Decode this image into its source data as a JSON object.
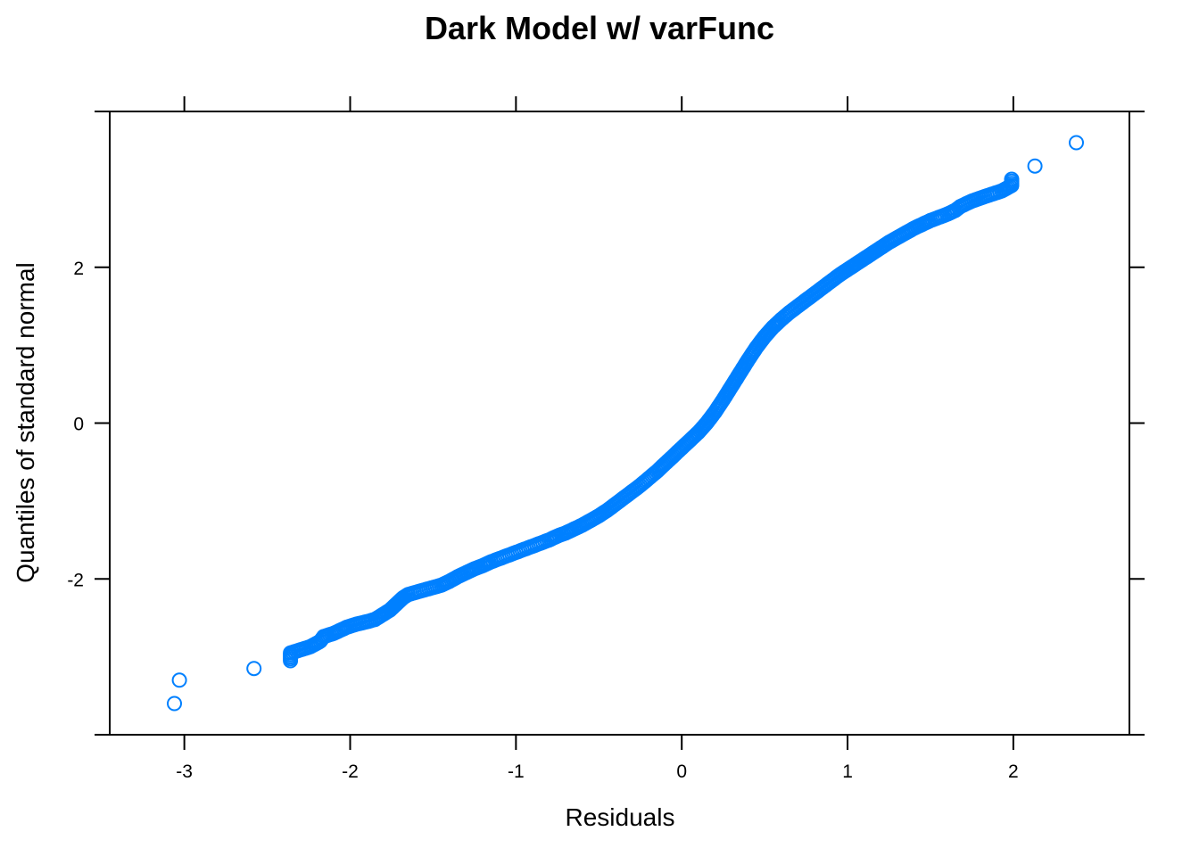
{
  "chart_data": {
    "type": "scatter",
    "title": "Dark Model w/ varFunc",
    "xlabel": "Residuals",
    "ylabel": "Quantiles of standard normal",
    "xlim": [
      -3.45,
      2.7
    ],
    "ylim": [
      -4.0,
      4.0
    ],
    "x_ticks": [
      -3,
      -2,
      -1,
      0,
      1,
      2
    ],
    "x_tick_labels": [
      "-3",
      "-2",
      "-1",
      "0",
      "1",
      "2"
    ],
    "y_ticks": [
      -2,
      0,
      2
    ],
    "y_tick_labels": [
      "-2",
      "0",
      "2"
    ],
    "y_minor_ticks": [
      -4,
      4
    ],
    "grid": false,
    "marker": "open-circle",
    "color": "#0080ff",
    "points": [
      [
        -3.06,
        -3.6
      ],
      [
        -3.03,
        -3.3
      ],
      [
        -2.58,
        -3.15
      ],
      [
        -2.36,
        -3.05
      ],
      [
        -2.36,
        -2.95
      ],
      [
        -2.24,
        -2.87
      ],
      [
        -2.18,
        -2.8
      ],
      [
        -2.16,
        -2.74
      ],
      [
        -2.1,
        -2.7
      ],
      [
        -2.06,
        -2.66
      ],
      [
        -2.02,
        -2.62
      ],
      [
        -1.96,
        -2.58
      ],
      [
        -1.9,
        -2.55
      ],
      [
        -1.85,
        -2.52
      ],
      [
        -1.82,
        -2.48
      ],
      [
        -1.79,
        -2.44
      ],
      [
        -1.76,
        -2.4
      ],
      [
        -1.74,
        -2.36
      ],
      [
        -1.72,
        -2.32
      ],
      [
        -1.7,
        -2.28
      ],
      [
        -1.68,
        -2.24
      ],
      [
        -1.65,
        -2.2
      ],
      [
        -1.6,
        -2.17
      ],
      [
        -1.55,
        -2.14
      ],
      [
        -1.5,
        -2.11
      ],
      [
        -1.45,
        -2.08
      ],
      [
        -1.4,
        -2.03
      ],
      [
        -1.35,
        -1.97
      ],
      [
        -1.3,
        -1.92
      ],
      [
        -1.25,
        -1.87
      ],
      [
        -1.2,
        -1.83
      ],
      [
        -1.15,
        -1.78
      ],
      [
        -1.1,
        -1.74
      ],
      [
        -1.05,
        -1.7
      ],
      [
        -1.0,
        -1.66
      ],
      [
        -0.95,
        -1.62
      ],
      [
        -0.9,
        -1.58
      ],
      [
        -0.85,
        -1.54
      ],
      [
        -0.8,
        -1.5
      ],
      [
        -0.75,
        -1.45
      ],
      [
        -0.7,
        -1.41
      ],
      [
        -0.65,
        -1.36
      ],
      [
        -0.6,
        -1.31
      ],
      [
        -0.55,
        -1.25
      ],
      [
        -0.5,
        -1.19
      ],
      [
        -0.45,
        -1.12
      ],
      [
        -0.4,
        -1.04
      ],
      [
        -0.35,
        -0.96
      ],
      [
        -0.3,
        -0.88
      ],
      [
        -0.25,
        -0.8
      ],
      [
        -0.2,
        -0.71
      ],
      [
        -0.15,
        -0.62
      ],
      [
        -0.1,
        -0.52
      ],
      [
        -0.05,
        -0.42
      ],
      [
        0.0,
        -0.32
      ],
      [
        0.05,
        -0.22
      ],
      [
        0.1,
        -0.12
      ],
      [
        0.15,
        0.0
      ],
      [
        0.2,
        0.14
      ],
      [
        0.25,
        0.3
      ],
      [
        0.3,
        0.47
      ],
      [
        0.35,
        0.64
      ],
      [
        0.4,
        0.81
      ],
      [
        0.45,
        0.97
      ],
      [
        0.5,
        1.11
      ],
      [
        0.55,
        1.23
      ],
      [
        0.6,
        1.33
      ],
      [
        0.65,
        1.42
      ],
      [
        0.7,
        1.5
      ],
      [
        0.75,
        1.58
      ],
      [
        0.8,
        1.66
      ],
      [
        0.85,
        1.74
      ],
      [
        0.9,
        1.82
      ],
      [
        0.95,
        1.9
      ],
      [
        1.0,
        1.97
      ],
      [
        1.05,
        2.04
      ],
      [
        1.1,
        2.11
      ],
      [
        1.15,
        2.18
      ],
      [
        1.2,
        2.25
      ],
      [
        1.25,
        2.32
      ],
      [
        1.3,
        2.38
      ],
      [
        1.35,
        2.44
      ],
      [
        1.4,
        2.5
      ],
      [
        1.45,
        2.55
      ],
      [
        1.5,
        2.6
      ],
      [
        1.55,
        2.64
      ],
      [
        1.6,
        2.68
      ],
      [
        1.65,
        2.73
      ],
      [
        1.68,
        2.78
      ],
      [
        1.75,
        2.85
      ],
      [
        1.83,
        2.91
      ],
      [
        1.93,
        2.98
      ],
      [
        1.99,
        3.05
      ],
      [
        1.99,
        3.13
      ],
      [
        2.13,
        3.3
      ],
      [
        2.38,
        3.6
      ]
    ]
  }
}
